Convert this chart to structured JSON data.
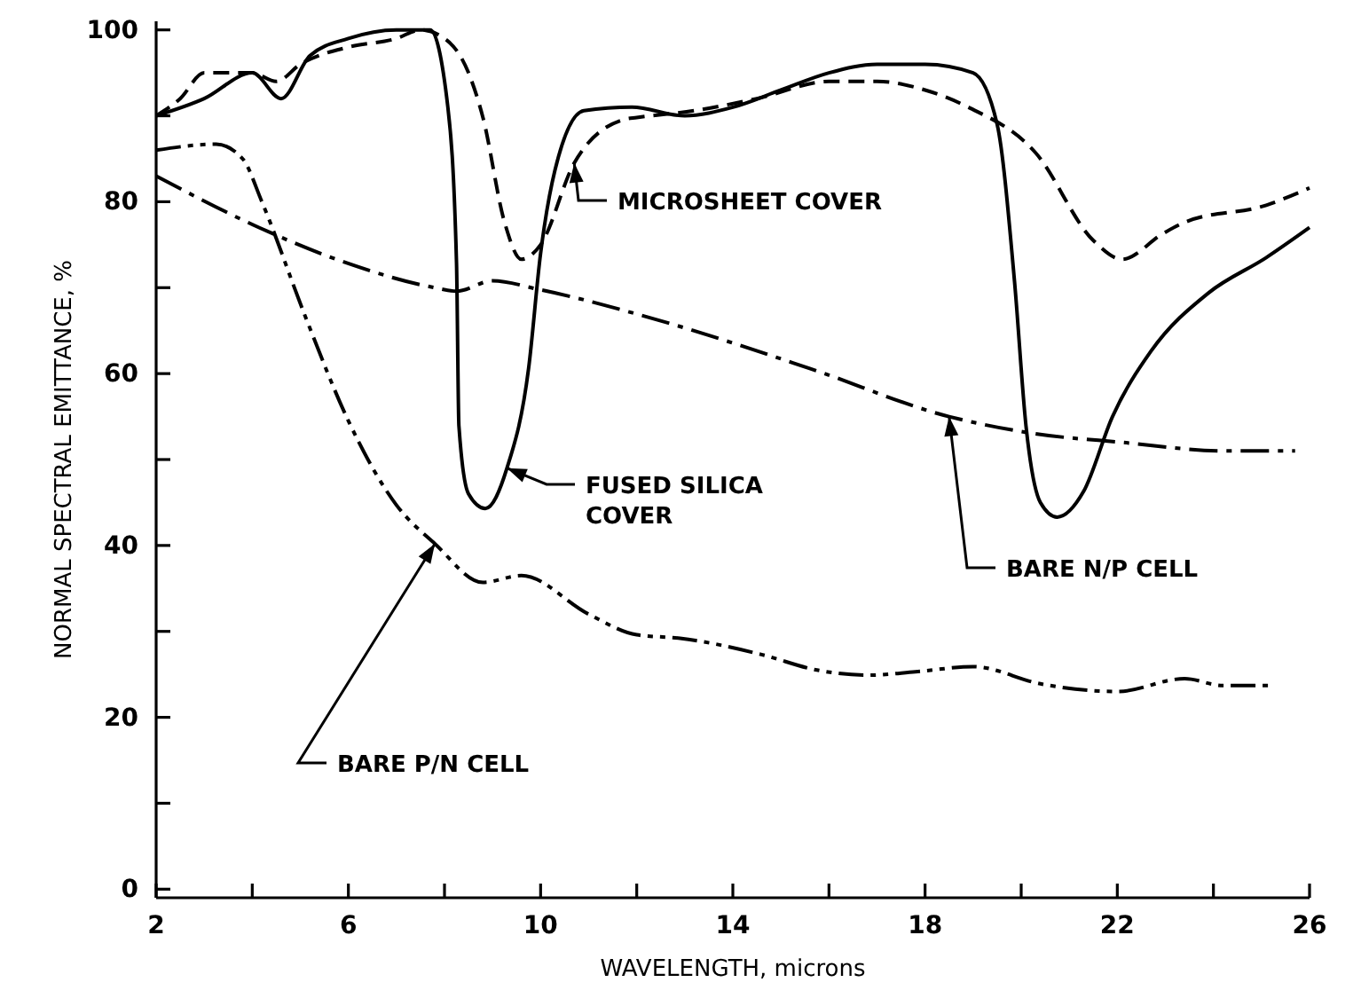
{
  "chart_data": {
    "type": "line",
    "xlabel": "WAVELENGTH, microns",
    "ylabel": "NORMAL SPECTRAL EMITTANCE, %",
    "xlim": [
      2,
      26
    ],
    "ylim": [
      -1,
      101
    ],
    "xticks": [
      2,
      {
        "value": 4,
        "label": null
      },
      6,
      {
        "value": 8,
        "label": null
      },
      10,
      {
        "value": 12,
        "label": null
      },
      14,
      {
        "value": 16,
        "label": null
      },
      18,
      {
        "value": 20,
        "label": null
      },
      22,
      {
        "value": 24,
        "label": null
      },
      26
    ],
    "yticks": [
      0,
      {
        "value": 10,
        "label": null
      },
      20,
      {
        "value": 30,
        "label": null
      },
      40,
      {
        "value": 50,
        "label": null
      },
      60,
      {
        "value": 70,
        "label": null
      },
      80,
      {
        "value": 90,
        "label": null
      },
      100
    ],
    "series": [
      {
        "name": "FUSED SILICA COVER",
        "color": "#000000",
        "line_style": "solid",
        "x": [
          2,
          3,
          4,
          4.6,
          5.2,
          6,
          7,
          7.7,
          8.07,
          8.25,
          8.3,
          8.5,
          8.85,
          9.3,
          9.75,
          10,
          10.3,
          10.9,
          11.9,
          13,
          14,
          15,
          16,
          17,
          18,
          19,
          19.5,
          19.86,
          20.1,
          20.4,
          20.75,
          21.3,
          21.9,
          22.7,
          23.9,
          25.1,
          26
        ],
        "values": [
          90,
          92,
          95,
          92,
          97,
          99,
          100,
          100,
          91,
          72.9,
          53.9,
          46,
          44.3,
          49,
          60.6,
          74,
          83.7,
          90.6,
          91,
          90,
          91,
          93,
          95,
          96,
          96,
          95,
          89,
          70.8,
          53.9,
          45,
          43.3,
          46.3,
          55,
          62.6,
          69.4,
          73.5,
          77
        ]
      },
      {
        "name": "MICROSHEET COVER",
        "color": "#000000",
        "line_style": "dashed",
        "x": [
          2,
          2.5,
          3,
          4,
          4.5,
          5,
          6,
          7,
          7.5,
          8,
          8.5,
          8.8,
          9.25,
          9.6,
          10,
          10.7,
          11.75,
          12,
          13.2,
          14.5,
          16,
          17,
          18,
          18.9,
          20.3,
          21.5,
          22.1,
          22.95,
          23.4,
          25.1,
          26
        ],
        "values": [
          90,
          92,
          95,
          95,
          94,
          96,
          98,
          99,
          100,
          99,
          95,
          89.8,
          77.6,
          73.3,
          75,
          84.5,
          89.6,
          89.8,
          90.6,
          92,
          94,
          94,
          93,
          91,
          85.7,
          75.5,
          73.3,
          76.3,
          77.6,
          79.6,
          81.6
        ]
      },
      {
        "name": "BARE N/P CELL",
        "color": "#000000",
        "line_style": "dashdot",
        "x": [
          2,
          4.14,
          5.9,
          7.8,
          8.25,
          9,
          9.96,
          12.4,
          15.6,
          18.5,
          20.3,
          22.1,
          24.25,
          25.7
        ],
        "values": [
          83,
          77,
          73,
          70,
          69.6,
          70.8,
          69.8,
          66.3,
          60.6,
          55,
          53,
          52,
          51,
          51
        ]
      },
      {
        "name": "BARE P/N CELL",
        "color": "#000000",
        "line_style": "dashdotdot",
        "x": [
          2,
          3.25,
          3.8,
          4.2,
          5.1,
          6,
          7,
          7.8,
          8.8,
          9.6,
          11,
          12,
          12.9,
          14.6,
          15.75,
          16.8,
          17.8,
          19,
          20.4,
          22,
          23.4,
          24.2,
          25.15
        ],
        "values": [
          86,
          86.7,
          85,
          80,
          66.7,
          54.5,
          44.7,
          40.2,
          35.7,
          36.5,
          32,
          29.6,
          29.2,
          27.3,
          25.5,
          24.9,
          25.3,
          25.9,
          23.9,
          23,
          24.5,
          23.7,
          23.7
        ]
      }
    ]
  }
}
